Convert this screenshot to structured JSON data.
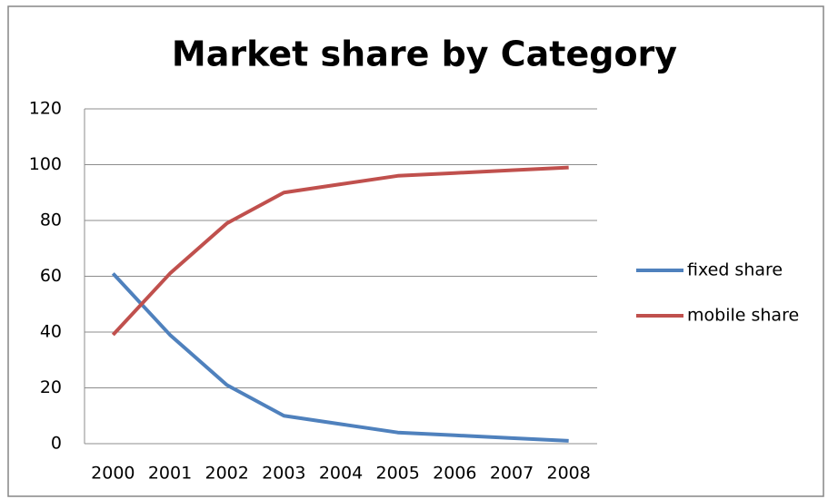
{
  "chart_data": {
    "type": "line",
    "title": "Market share by Category",
    "categories": [
      "2000",
      "2001",
      "2002",
      "2003",
      "2004",
      "2005",
      "2006",
      "2007",
      "2008"
    ],
    "series": [
      {
        "name": "fixed share",
        "color": "#4f81bd",
        "values": [
          61,
          39,
          21,
          10,
          7,
          4,
          3,
          2,
          1
        ]
      },
      {
        "name": "mobile share",
        "color": "#c0504d",
        "values": [
          39,
          61,
          79,
          90,
          93,
          96,
          97,
          98,
          99
        ]
      }
    ],
    "ylim": [
      0,
      120
    ],
    "yticks": [
      0,
      20,
      40,
      60,
      80,
      100,
      120
    ],
    "grid": true,
    "legend": "right"
  }
}
